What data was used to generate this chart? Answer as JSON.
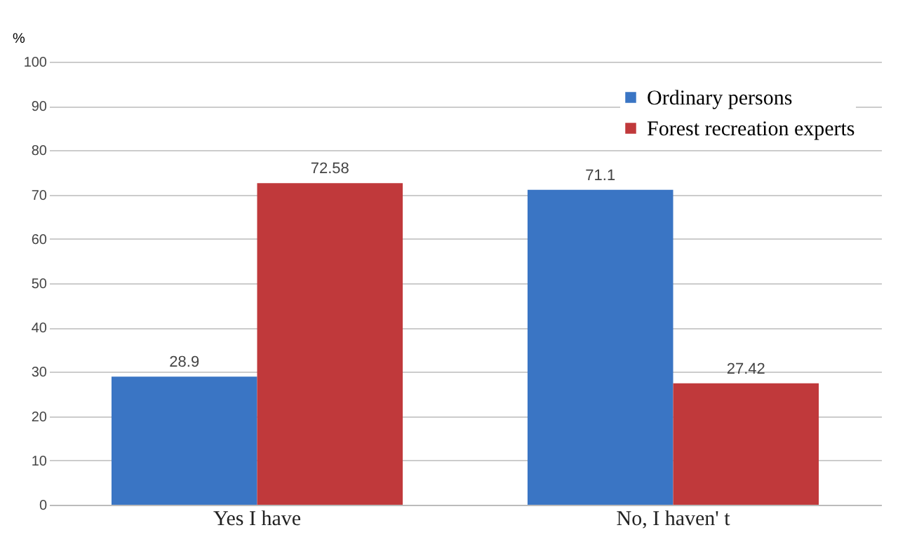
{
  "chart_data": {
    "type": "bar",
    "ylabel": "%",
    "categories": [
      "Yes I have",
      "No, I haven' t"
    ],
    "series": [
      {
        "name": "Ordinary persons",
        "color": "#3a75c4",
        "values": [
          28.9,
          71.1
        ]
      },
      {
        "name": "Forest recreation experts",
        "color": "#c0393b",
        "values": [
          72.58,
          27.42
        ]
      }
    ],
    "ylim": [
      0,
      100
    ],
    "yticks": [
      0,
      10,
      20,
      30,
      40,
      50,
      60,
      70,
      80,
      90,
      100
    ],
    "grid": "y",
    "legend": "top right",
    "data_labels": true
  }
}
